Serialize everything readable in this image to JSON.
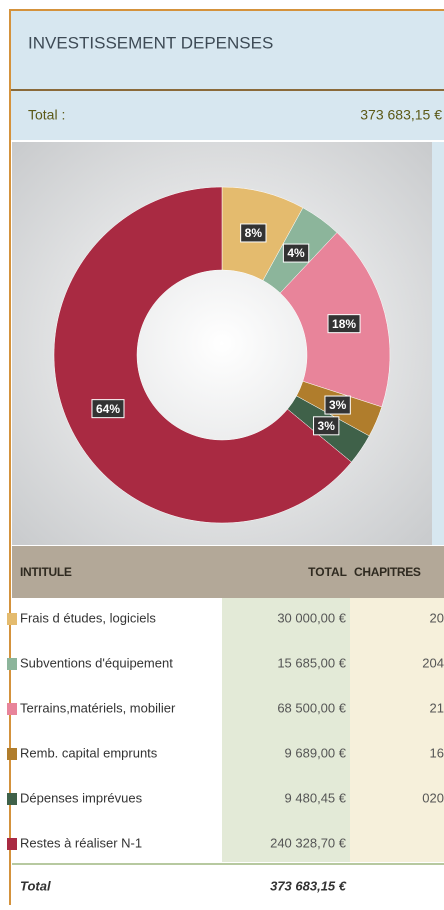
{
  "header": {
    "title": "INVESTISSEMENT DEPENSES",
    "total_label": "Total  :",
    "total_value": "373 683,15 €"
  },
  "chart_data": {
    "type": "donut",
    "categories": [
      "Frais d études, logiciels",
      "Subventions d'équipement",
      "Terrains,matériels, mobilier",
      "Remb. capital emprunts",
      "Dépenses imprévues",
      "Restes à réaliser N-1"
    ],
    "values": [
      8,
      4,
      18,
      3,
      3,
      64
    ],
    "value_labels": [
      "8%",
      "4%",
      "18%",
      "3%",
      "3%",
      "64%"
    ],
    "colors": [
      "#e4bb6e",
      "#8cb59b",
      "#e8849a",
      "#b07d2c",
      "#3f6149",
      "#a92a42"
    ]
  },
  "table": {
    "columns": [
      "INTITULE",
      "TOTAL",
      "CHAPITRES"
    ],
    "rows": [
      {
        "label": "Frais d études, logiciels",
        "total": "30 000,00 €",
        "chapitre": "20"
      },
      {
        "label": "Subventions d'équipement",
        "total": "15 685,00 €",
        "chapitre": "204"
      },
      {
        "label": "Terrains,matériels, mobilier",
        "total": "68 500,00 €",
        "chapitre": "21"
      },
      {
        "label": "Remb. capital emprunts",
        "total": "9 689,00 €",
        "chapitre": "16"
      },
      {
        "label": "Dépenses imprévues",
        "total": "9 480,45 €",
        "chapitre": "020"
      },
      {
        "label": "Restes à réaliser N-1",
        "total": "240 328,70 €"
      }
    ],
    "total": {
      "label": "Total",
      "total": "373 683,15 €"
    }
  }
}
